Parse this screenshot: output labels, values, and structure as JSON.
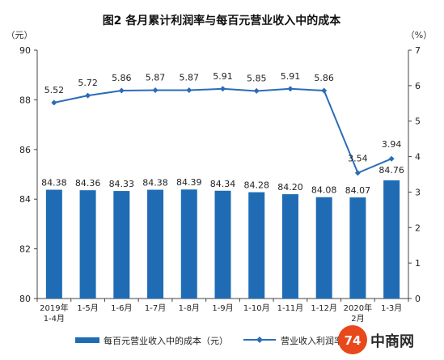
{
  "chart_data": {
    "type": "bar+line",
    "title": "图2  各月累计利润率与每百元营业收入中的成本",
    "categories": [
      [
        "2019年",
        "1-4月"
      ],
      [
        "1-5月"
      ],
      [
        "1-6月"
      ],
      [
        "1-7月"
      ],
      [
        "1-8月"
      ],
      [
        "1-9月"
      ],
      [
        "1-10月"
      ],
      [
        "1-11月"
      ],
      [
        "1-12月"
      ],
      [
        "2020年",
        "2月"
      ],
      [
        "1-3月"
      ]
    ],
    "left_axis": {
      "unit": "（元）",
      "ylim": [
        80,
        90
      ],
      "ticks": [
        80,
        82,
        84,
        86,
        88,
        90
      ]
    },
    "right_axis": {
      "unit": "（%）",
      "ylim": [
        0,
        7
      ],
      "ticks": [
        0,
        1,
        2,
        3,
        4,
        5,
        6,
        7
      ]
    },
    "bars": {
      "name": "每百元营业收入中的成本（元）",
      "color": "#1f6cb5",
      "values": [
        84.38,
        84.36,
        84.33,
        84.38,
        84.39,
        84.34,
        84.28,
        84.2,
        84.08,
        84.07,
        84.76
      ],
      "labels": [
        "84.38",
        "84.36",
        "84.33",
        "84.38",
        "84.39",
        "84.34",
        "84.28",
        "84.20",
        "84.08",
        "84.07",
        "84.76"
      ]
    },
    "line": {
      "name": "营业收入利润率（%）",
      "color": "#2b6cb8",
      "values": [
        5.52,
        5.72,
        5.86,
        5.87,
        5.87,
        5.91,
        5.85,
        5.91,
        5.86,
        3.54,
        3.94
      ],
      "labels": [
        "5.52",
        "5.72",
        "5.86",
        "5.87",
        "5.87",
        "5.91",
        "5.85",
        "5.91",
        "5.86",
        "3.54",
        "3.94"
      ]
    },
    "legend_position": "bottom",
    "grid": false
  },
  "watermark": {
    "text": "中商网",
    "logo_text": "74"
  }
}
